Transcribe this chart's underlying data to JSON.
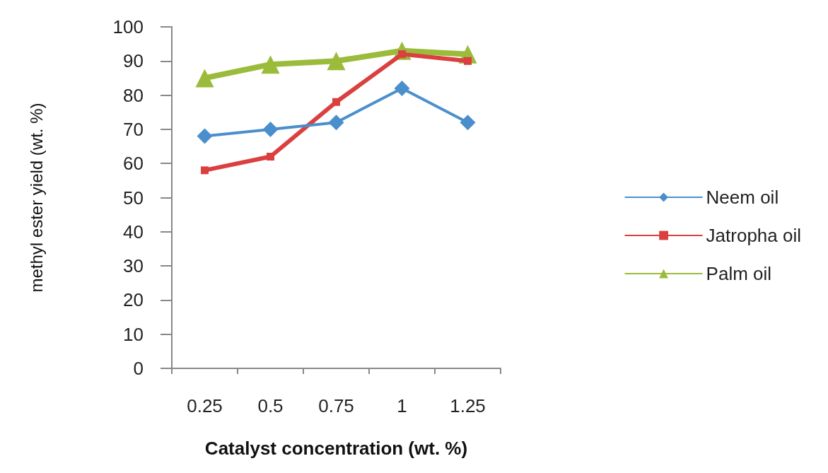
{
  "chart_data": {
    "type": "line",
    "xlabel": "Catalyst concentration (wt. %)",
    "ylabel": "methyl ester yield (wt. %)",
    "categories": [
      "0.25",
      "0.5",
      "0.75",
      "1",
      "1.25"
    ],
    "ylim": [
      0,
      100
    ],
    "yticks": [
      0,
      10,
      20,
      30,
      40,
      50,
      60,
      70,
      80,
      90,
      100
    ],
    "legend": "right",
    "series": [
      {
        "name": "Neem oil",
        "color": "#4a8fcc",
        "marker": "diamond",
        "values": [
          68,
          70,
          72,
          82,
          72
        ]
      },
      {
        "name": "Jatropha oil",
        "color": "#d9403f",
        "marker": "square",
        "values": [
          58,
          62,
          78,
          92,
          90
        ]
      },
      {
        "name": "Palm oil",
        "color": "#9bbb3b",
        "marker": "triangle",
        "values": [
          85,
          89,
          90,
          93,
          92
        ]
      }
    ]
  }
}
